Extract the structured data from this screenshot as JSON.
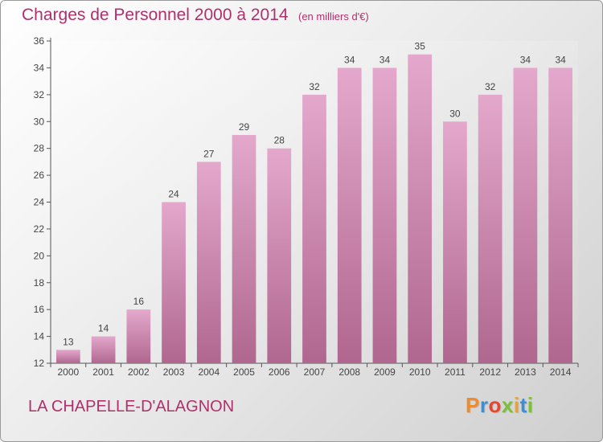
{
  "header": {
    "title": "Charges de Personnel 2000 à 2014",
    "subtitle": "(en milliers d'€)"
  },
  "footer": {
    "place": "LA CHAPELLE-D'ALAGNON",
    "logo_text": "Proxiti"
  },
  "colors": {
    "bar_top": "#e4a8cc",
    "bar_bottom": "#b0678f",
    "accent": "#b0306c",
    "logo": [
      "#f08a2b",
      "#3a8fd9",
      "#e8452c",
      "#7bbf3a",
      "#f0a323",
      "#3a8fd9",
      "#7bbf3a"
    ]
  },
  "chart_data": {
    "type": "bar",
    "categories": [
      "2000",
      "2001",
      "2002",
      "2003",
      "2004",
      "2005",
      "2006",
      "2007",
      "2008",
      "2009",
      "2010",
      "2011",
      "2012",
      "2013",
      "2014"
    ],
    "values": [
      13,
      14,
      16,
      24,
      27,
      29,
      28,
      32,
      34,
      34,
      35,
      30,
      32,
      34,
      34
    ],
    "title": "Charges de Personnel 2000 à 2014",
    "subtitle": "(en milliers d'€)",
    "xlabel": "",
    "ylabel": "",
    "ylim": [
      12,
      36
    ],
    "yticks": [
      12,
      14,
      16,
      18,
      20,
      22,
      24,
      26,
      28,
      30,
      32,
      34,
      36
    ],
    "grid": false,
    "legend": "none"
  }
}
